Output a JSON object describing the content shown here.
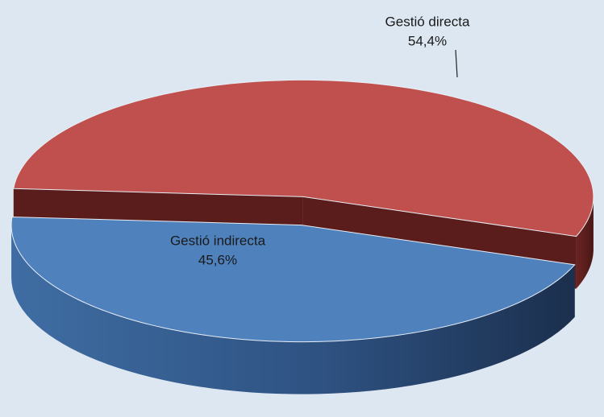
{
  "chart_data": {
    "type": "pie3d",
    "categories": [
      "Gestió directa",
      "Gestió indirecta"
    ],
    "values": [
      54.4,
      45.6
    ],
    "value_labels": [
      "54,4%",
      "45,6%"
    ],
    "colors": [
      "#c0504d",
      "#4f81bd"
    ]
  }
}
